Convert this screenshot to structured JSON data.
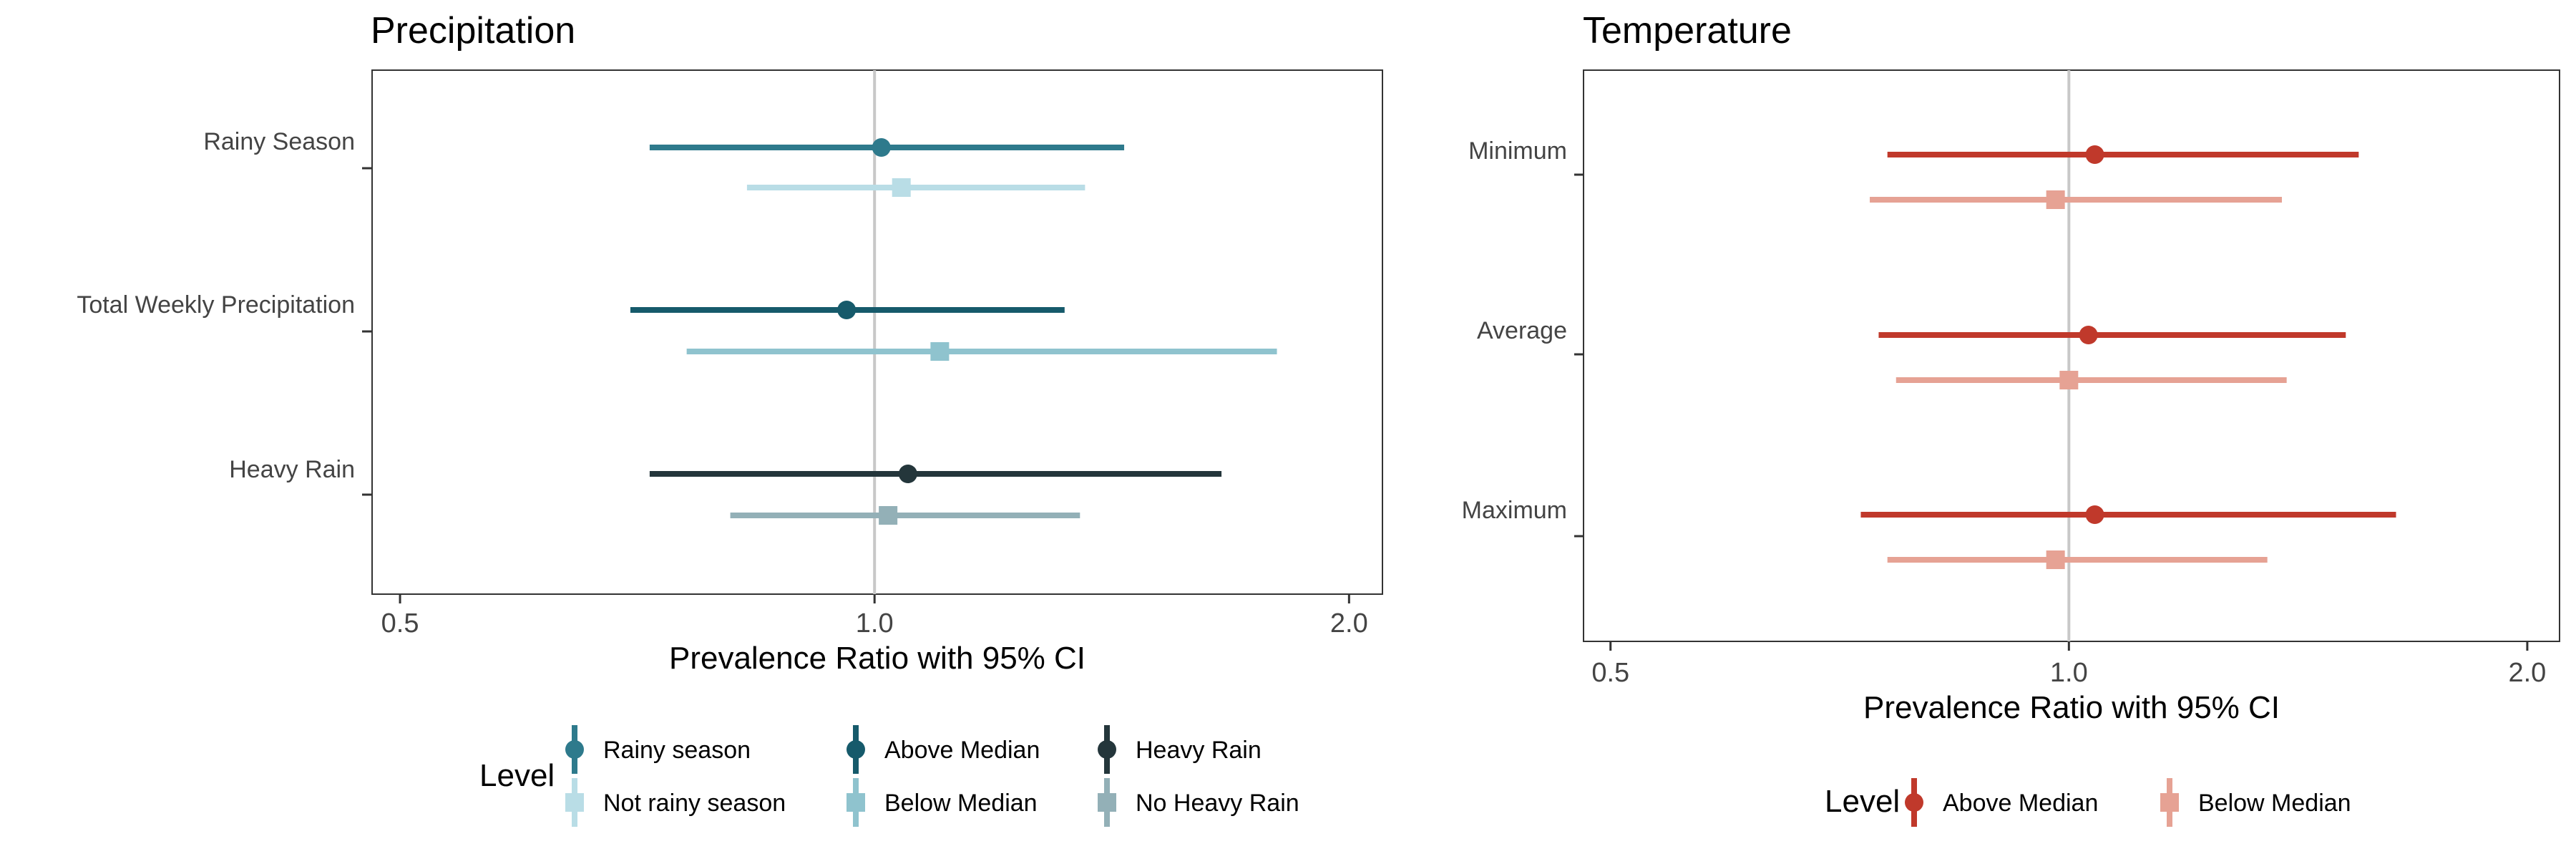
{
  "chart_data": [
    {
      "type": "forest",
      "title": "Precipitation",
      "xlabel": "Prevalence Ratio with 95% CI",
      "xscale": "log",
      "xlim": [
        0.48,
        2.1
      ],
      "xticks": [
        {
          "value": 0.5,
          "label": "0.5"
        },
        {
          "value": 1.0,
          "label": "1.0"
        },
        {
          "value": 2.0,
          "label": "2.0"
        }
      ],
      "reference_line": 1.0,
      "categories": [
        "Rainy Season",
        "Total Weekly Precipitation",
        "Heavy Rain"
      ],
      "series": [
        {
          "name": "Rainy season",
          "category": "Rainy Season",
          "estimate": 1.01,
          "lower": 0.72,
          "upper": 1.44,
          "marker": "circle",
          "color": "#2e7a8c"
        },
        {
          "name": "Not rainy season",
          "category": "Rainy Season",
          "estimate": 1.04,
          "lower": 0.83,
          "upper": 1.36,
          "marker": "square",
          "color": "#b9dde6"
        },
        {
          "name": "Above Median",
          "category": "Total Weekly Precipitation",
          "estimate": 0.96,
          "lower": 0.7,
          "upper": 1.32,
          "marker": "circle",
          "color": "#165a6b"
        },
        {
          "name": "Below Median",
          "category": "Total Weekly Precipitation",
          "estimate": 1.1,
          "lower": 0.76,
          "upper": 1.8,
          "marker": "square",
          "color": "#8fc3ce"
        },
        {
          "name": "Heavy Rain",
          "category": "Heavy Rain",
          "estimate": 1.05,
          "lower": 0.72,
          "upper": 1.66,
          "marker": "circle",
          "color": "#24363b"
        },
        {
          "name": "No Heavy Rain",
          "category": "Heavy Rain",
          "estimate": 1.02,
          "lower": 0.81,
          "upper": 1.35,
          "marker": "square",
          "color": "#93b0b7"
        }
      ],
      "legend": {
        "title": "Level",
        "placement": "bottom",
        "items": [
          "Rainy season",
          "Not rainy season",
          "Above Median",
          "Below Median",
          "Heavy Rain",
          "No Heavy Rain"
        ]
      }
    },
    {
      "type": "forest",
      "title": "Temperature",
      "xlabel": "Prevalence Ratio with 95% CI",
      "xscale": "log",
      "xlim": [
        0.48,
        2.1
      ],
      "xticks": [
        {
          "value": 0.5,
          "label": "0.5"
        },
        {
          "value": 1.0,
          "label": "1.0"
        },
        {
          "value": 2.0,
          "label": "2.0"
        }
      ],
      "reference_line": 1.0,
      "categories": [
        "Minimum",
        "Average",
        "Maximum"
      ],
      "series": [
        {
          "name": "Above Median",
          "category": "Minimum",
          "estimate": 1.04,
          "lower": 0.76,
          "upper": 1.55,
          "marker": "circle",
          "color": "#c0392b"
        },
        {
          "name": "Below Median",
          "category": "Minimum",
          "estimate": 0.98,
          "lower": 0.74,
          "upper": 1.38,
          "marker": "square",
          "color": "#e6a294"
        },
        {
          "name": "Above Median",
          "category": "Average",
          "estimate": 1.03,
          "lower": 0.75,
          "upper": 1.52,
          "marker": "circle",
          "color": "#c0392b"
        },
        {
          "name": "Below Median",
          "category": "Average",
          "estimate": 1.0,
          "lower": 0.77,
          "upper": 1.39,
          "marker": "square",
          "color": "#e6a294"
        },
        {
          "name": "Above Median",
          "category": "Maximum",
          "estimate": 1.04,
          "lower": 0.73,
          "upper": 1.64,
          "marker": "circle",
          "color": "#c0392b"
        },
        {
          "name": "Below Median",
          "category": "Maximum",
          "estimate": 0.98,
          "lower": 0.76,
          "upper": 1.35,
          "marker": "square",
          "color": "#e6a294"
        }
      ],
      "legend": {
        "title": "Level",
        "placement": "bottom",
        "items": [
          "Above Median",
          "Below Median"
        ]
      }
    }
  ]
}
